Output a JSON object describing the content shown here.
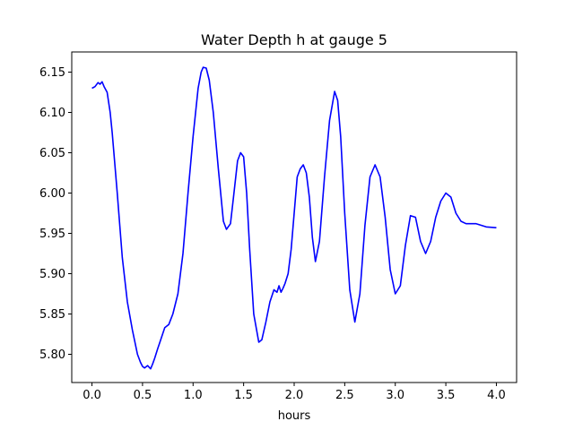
{
  "chart_data": {
    "type": "line",
    "title": "Water Depth h at gauge 5",
    "xlabel": "hours",
    "ylabel": "",
    "xlim": [
      -0.2,
      4.2
    ],
    "ylim": [
      5.765,
      6.175
    ],
    "xticks": [
      0.0,
      0.5,
      1.0,
      1.5,
      2.0,
      2.5,
      3.0,
      3.5,
      4.0
    ],
    "xtick_labels": [
      "0.0",
      "0.5",
      "1.0",
      "1.5",
      "2.0",
      "2.5",
      "3.0",
      "3.5",
      "4.0"
    ],
    "yticks": [
      5.8,
      5.85,
      5.9,
      5.95,
      6.0,
      6.05,
      6.1,
      6.15
    ],
    "ytick_labels": [
      "5.80",
      "5.85",
      "5.90",
      "5.95",
      "6.00",
      "6.05",
      "6.10",
      "6.15"
    ],
    "grid": false,
    "legend": "none",
    "series": [
      {
        "color": "#0000ff",
        "x": [
          0.0,
          0.03,
          0.06,
          0.08,
          0.1,
          0.12,
          0.15,
          0.18,
          0.2,
          0.25,
          0.3,
          0.35,
          0.4,
          0.45,
          0.48,
          0.5,
          0.52,
          0.55,
          0.58,
          0.6,
          0.62,
          0.65,
          0.68,
          0.72,
          0.76,
          0.8,
          0.85,
          0.9,
          0.95,
          1.0,
          1.05,
          1.08,
          1.1,
          1.13,
          1.16,
          1.2,
          1.25,
          1.3,
          1.33,
          1.37,
          1.4,
          1.44,
          1.47,
          1.5,
          1.53,
          1.56,
          1.6,
          1.65,
          1.68,
          1.72,
          1.76,
          1.8,
          1.83,
          1.85,
          1.87,
          1.89,
          1.91,
          1.94,
          1.97,
          2.0,
          2.03,
          2.06,
          2.09,
          2.12,
          2.15,
          2.18,
          2.21,
          2.25,
          2.3,
          2.35,
          2.4,
          2.43,
          2.46,
          2.5,
          2.55,
          2.6,
          2.65,
          2.7,
          2.75,
          2.8,
          2.85,
          2.9,
          2.95,
          3.0,
          3.05,
          3.1,
          3.15,
          3.2,
          3.25,
          3.3,
          3.35,
          3.4,
          3.45,
          3.5,
          3.55,
          3.6,
          3.65,
          3.7,
          3.8,
          3.9,
          4.0
        ],
        "y": [
          6.13,
          6.132,
          6.137,
          6.135,
          6.138,
          6.132,
          6.125,
          6.1,
          6.075,
          6.0,
          5.92,
          5.865,
          5.83,
          5.8,
          5.79,
          5.785,
          5.783,
          5.786,
          5.782,
          5.788,
          5.795,
          5.807,
          5.818,
          5.833,
          5.837,
          5.85,
          5.875,
          5.925,
          6.0,
          6.07,
          6.13,
          6.15,
          6.156,
          6.155,
          6.14,
          6.1,
          6.03,
          5.965,
          5.955,
          5.962,
          5.995,
          6.04,
          6.05,
          6.045,
          6.0,
          5.93,
          5.85,
          5.815,
          5.818,
          5.84,
          5.865,
          5.88,
          5.877,
          5.885,
          5.877,
          5.882,
          5.888,
          5.9,
          5.93,
          5.975,
          6.02,
          6.03,
          6.035,
          6.025,
          5.995,
          5.945,
          5.915,
          5.94,
          6.02,
          6.09,
          6.126,
          6.115,
          6.07,
          5.975,
          5.88,
          5.84,
          5.875,
          5.96,
          6.02,
          6.035,
          6.02,
          5.97,
          5.905,
          5.875,
          5.885,
          5.935,
          5.972,
          5.97,
          5.94,
          5.925,
          5.94,
          5.97,
          5.99,
          6.0,
          5.995,
          5.975,
          5.965,
          5.962,
          5.962,
          5.958,
          5.957
        ]
      }
    ]
  }
}
